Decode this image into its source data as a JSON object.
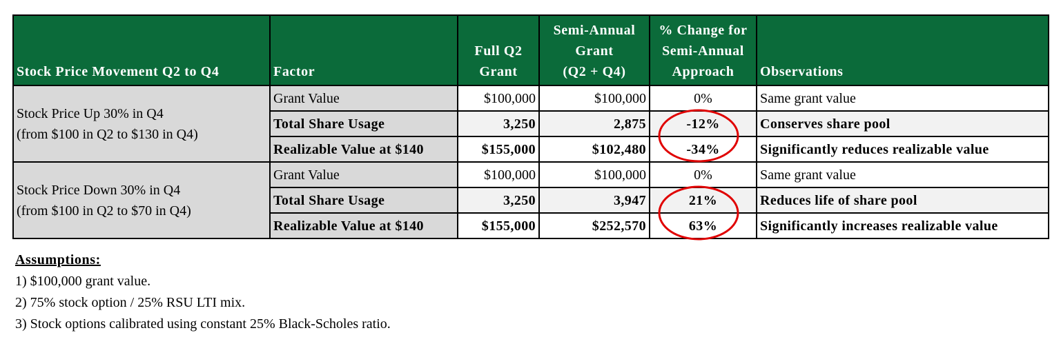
{
  "headers": {
    "movement": "Stock Price Movement Q2 to Q4",
    "factor": "Factor",
    "full_q2": [
      "Full Q2",
      "Grant"
    ],
    "semi_annual": [
      "Semi-Annual",
      "Grant",
      "(Q2 + Q4)"
    ],
    "pct_change": [
      "% Change for",
      "Semi-Annual",
      "Approach"
    ],
    "observations": "Observations"
  },
  "scenarios": [
    {
      "label_lines": [
        "Stock Price Up 30% in Q4",
        "(from $100 in Q2 to $130 in Q4)"
      ],
      "rows": [
        {
          "factor": "Grant Value",
          "full_q2": "$100,000",
          "semi_annual": "$100,000",
          "pct_change": "0%",
          "observation": "Same grant value"
        },
        {
          "factor": "Total Share Usage",
          "full_q2": "3,250",
          "semi_annual": "2,875",
          "pct_change": "-12%",
          "observation": "Conserves share pool"
        },
        {
          "factor": "Realizable Value at $140",
          "full_q2": "$155,000",
          "semi_annual": "$102,480",
          "pct_change": "-34%",
          "observation": "Significantly reduces realizable value"
        }
      ]
    },
    {
      "label_lines": [
        "Stock Price Down 30% in Q4",
        "(from $100 in Q2 to $70 in Q4)"
      ],
      "rows": [
        {
          "factor": "Grant Value",
          "full_q2": "$100,000",
          "semi_annual": "$100,000",
          "pct_change": "0%",
          "observation": "Same grant value"
        },
        {
          "factor": "Total Share Usage",
          "full_q2": "3,250",
          "semi_annual": "3,947",
          "pct_change": "21%",
          "observation": "Reduces life of share pool"
        },
        {
          "factor": "Realizable Value at $140",
          "full_q2": "$155,000",
          "semi_annual": "$252,570",
          "pct_change": "63%",
          "observation": "Significantly increases realizable value"
        }
      ]
    }
  ],
  "assumptions": {
    "title": "Assumptions:",
    "items": [
      "1) $100,000 grant value.",
      "2) 75% stock option / 25% RSU LTI mix.",
      "3) Stock options calibrated using constant 25% Black-Scholes ratio."
    ]
  },
  "colors": {
    "header_bg": "#0b6b3a",
    "label_bg": "#d9d9d9",
    "highlight_circle": "#e00000"
  }
}
